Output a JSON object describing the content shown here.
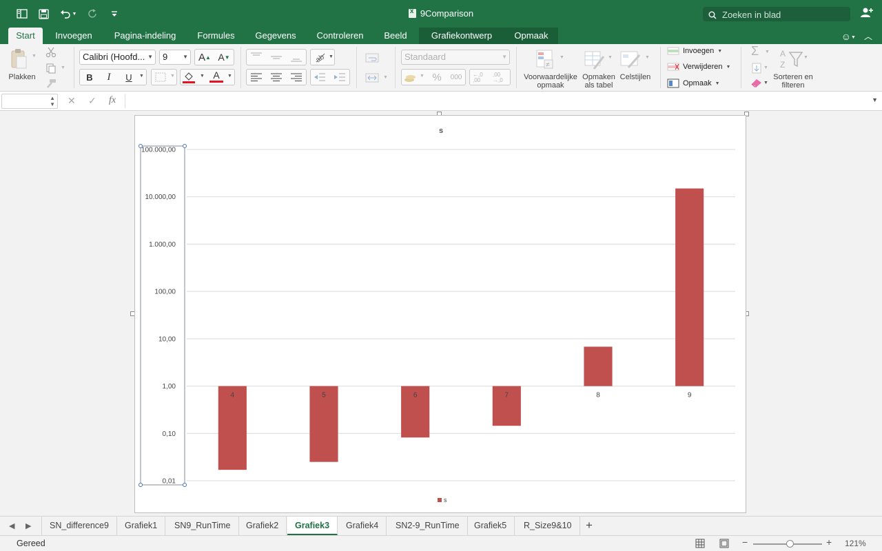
{
  "window": {
    "title": "9Comparison",
    "search_placeholder": "Zoeken in blad"
  },
  "ribbon_tabs": [
    {
      "label": "Start",
      "state": "active"
    },
    {
      "label": "Invoegen"
    },
    {
      "label": "Pagina-indeling"
    },
    {
      "label": "Formules"
    },
    {
      "label": "Gegevens"
    },
    {
      "label": "Controleren"
    },
    {
      "label": "Beeld"
    },
    {
      "label": "Grafiekontwerp",
      "state": "contextual"
    },
    {
      "label": "Opmaak",
      "state": "contextual"
    }
  ],
  "ribbon": {
    "paste_label": "Plakken",
    "font_name": "Calibri (Hoofd...",
    "font_size": "9",
    "grow_font_label": "A",
    "shrink_font_label": "A",
    "bold": "B",
    "italic": "I",
    "underline": "U",
    "font_color_glyph": "A",
    "number_format": "Standaard",
    "percent_glyph": "%",
    "thousands_glyph": "000",
    "conditional_format_label": "Voorwaardelijke opmaak",
    "format_as_table_label": "Opmaken als tabel",
    "cell_styles_label": "Celstijlen",
    "insert_label": "Invoegen",
    "delete_label": "Verwijderen",
    "format_label": "Opmaak",
    "sort_filter_label": "Sorteren en filteren",
    "colors": {
      "font_color": "#e81123",
      "fill_color": "#e81123"
    }
  },
  "formula_bar": {
    "name_box": "",
    "fx_label": "fx",
    "formula": ""
  },
  "chart_data": {
    "type": "bar",
    "title": "s",
    "scale": "log",
    "categories": [
      "4",
      "5",
      "6",
      "7",
      "8",
      "9"
    ],
    "series": [
      {
        "name": "s",
        "color": "#c0504d",
        "values": [
          0.017,
          0.025,
          0.082,
          0.145,
          6.8,
          15000
        ]
      }
    ],
    "y_ticks": [
      {
        "value": 0.01,
        "label": "0,01"
      },
      {
        "value": 0.1,
        "label": "0,10"
      },
      {
        "value": 1,
        "label": "1,00"
      },
      {
        "value": 10,
        "label": "10,00"
      },
      {
        "value": 100,
        "label": "100,00"
      },
      {
        "value": 1000,
        "label": "1.000,00"
      },
      {
        "value": 10000,
        "label": "10.000,00"
      },
      {
        "value": 100000,
        "label": "100.000,00"
      }
    ],
    "ylim": [
      0.01,
      100000
    ],
    "axis_crosses_at": 1,
    "grid": true,
    "legend": "bottom",
    "selected_element": "vertical-axis"
  },
  "sheet_tabs": [
    {
      "label": "SN_difference9"
    },
    {
      "label": "Grafiek1"
    },
    {
      "label": "SN9_RunTime"
    },
    {
      "label": "Grafiek2"
    },
    {
      "label": "Grafiek3",
      "state": "active"
    },
    {
      "label": "Grafiek4"
    },
    {
      "label": "SN2-9_RunTime"
    },
    {
      "label": "Grafiek5"
    },
    {
      "label": "R_Size9&10"
    }
  ],
  "status": {
    "text": "Gereed",
    "zoom": "121%",
    "zoom_level_fraction": 0.55
  }
}
